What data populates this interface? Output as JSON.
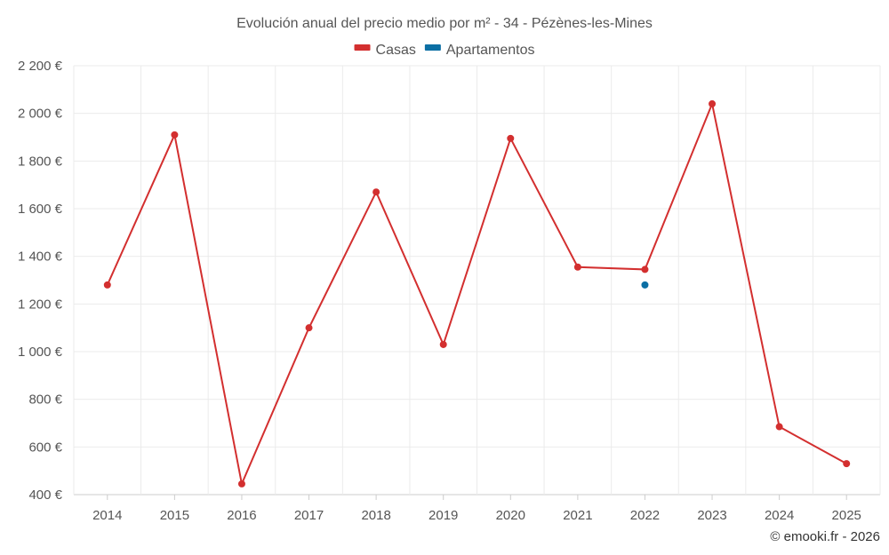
{
  "chart_data": {
    "type": "line",
    "title": "Evolución anual del precio medio por m² - 34 - Pézènes-les-Mines",
    "categories": [
      "2014",
      "2015",
      "2016",
      "2017",
      "2018",
      "2019",
      "2020",
      "2021",
      "2022",
      "2023",
      "2024",
      "2025"
    ],
    "series": [
      {
        "name": "Casas",
        "color": "#d32f2f",
        "values": [
          1280,
          1910,
          445,
          1100,
          1670,
          1030,
          1895,
          1355,
          1345,
          2040,
          685,
          530
        ]
      },
      {
        "name": "Apartamentos",
        "color": "#0b6fa4",
        "values": [
          null,
          null,
          null,
          null,
          null,
          null,
          null,
          null,
          1280,
          null,
          null,
          null
        ]
      }
    ],
    "ylim": [
      400,
      2200
    ],
    "yticks": [
      400,
      600,
      800,
      1000,
      1200,
      1400,
      1600,
      1800,
      2000,
      2200
    ],
    "ytick_labels": [
      "400 €",
      "600 €",
      "800 €",
      "1 000 €",
      "1 200 €",
      "1 400 €",
      "1 600 €",
      "1 800 €",
      "2 000 €",
      "2 200 €"
    ],
    "grid": true,
    "legend_position": "top-center",
    "credit": "© emooki.fr - 2026"
  }
}
